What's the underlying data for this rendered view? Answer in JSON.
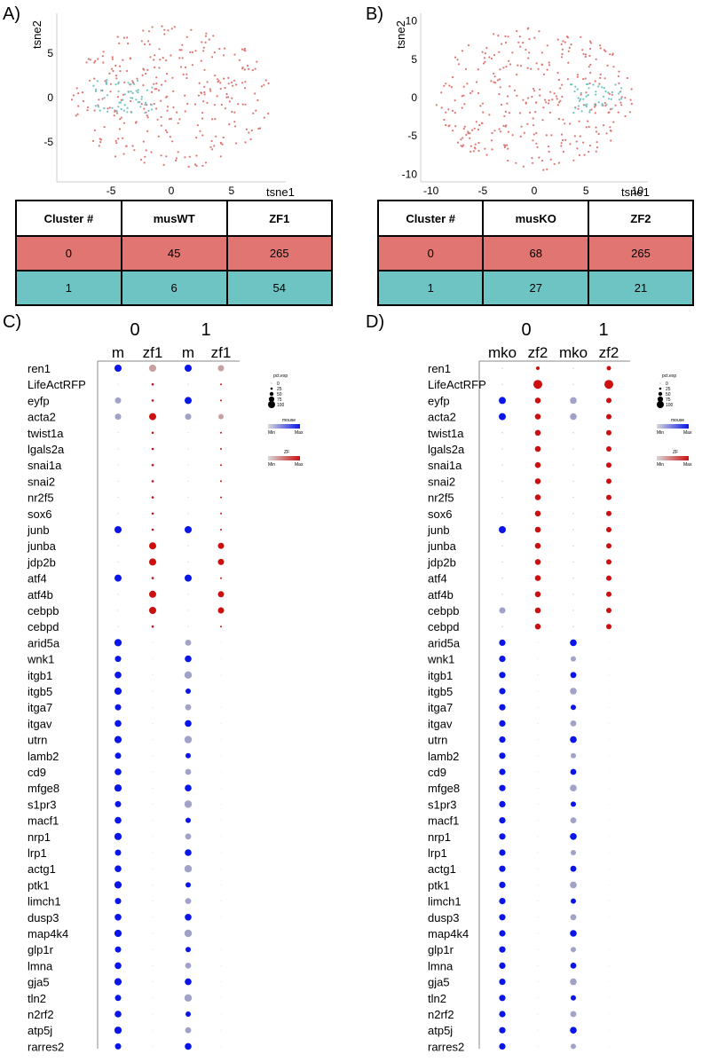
{
  "colors": {
    "cluster0": "#e07571",
    "cluster1": "#6ec3c3",
    "mouse_dot": "#0a16e8",
    "zf_dot": "#cc1010",
    "mouse_pale": "#a0a2c8",
    "zf_pale": "#c8a0a0"
  },
  "labels": {
    "A": "A)",
    "B": "B)",
    "C": "C)",
    "D": "D)"
  },
  "chart_data": [
    {
      "panel": "A",
      "type": "scatter",
      "xlabel": "tsne1",
      "ylabel": "tsne2",
      "xlim": [
        -9.5,
        9.5
      ],
      "ylim": [
        -9.5,
        9.5
      ],
      "xticks": [
        -5,
        0,
        5
      ],
      "yticks": [
        -5,
        0,
        5
      ],
      "series": [
        {
          "name": "0",
          "color": "#e07571",
          "count": 310
        },
        {
          "name": "1",
          "color": "#6ec3c3",
          "count": 60
        }
      ],
      "table": {
        "headers": [
          "Cluster #",
          "musWT",
          "ZF1"
        ],
        "rows": [
          {
            "cells": [
              "0",
              "45",
              "265"
            ]
          },
          {
            "cells": [
              "1",
              "6",
              "54"
            ]
          }
        ]
      }
    },
    {
      "panel": "B",
      "type": "scatter",
      "xlabel": "tsne1",
      "ylabel": "tsne2",
      "xlim": [
        -11,
        11
      ],
      "ylim": [
        -11,
        11
      ],
      "xticks": [
        -10,
        -5,
        0,
        5,
        10
      ],
      "yticks": [
        -10,
        -5,
        0,
        5,
        10
      ],
      "series": [
        {
          "name": "0",
          "color": "#e07571",
          "count": 333
        },
        {
          "name": "1",
          "color": "#6ec3c3",
          "count": 48
        }
      ],
      "table": {
        "headers": [
          "Cluster #",
          "musKO",
          "ZF2"
        ],
        "rows": [
          {
            "cells": [
              "0",
              "68",
              "265"
            ]
          },
          {
            "cells": [
              "1",
              "27",
              "21"
            ]
          }
        ]
      }
    },
    {
      "panel": "C",
      "type": "dotplot",
      "clusters": [
        "0",
        "1"
      ],
      "columns": [
        "m",
        "zf1",
        "m",
        "zf1"
      ],
      "genes": [
        "ren1",
        "LifeActRFP",
        "eyfp",
        "acta2",
        "twist1a",
        "lgals2a",
        "snai1a",
        "snai2",
        "nr2f5",
        "sox6",
        "junb",
        "junba",
        "jdp2b",
        "atf4",
        "atf4b",
        "cebpb",
        "cebpd",
        "arid5a",
        "wnk1",
        "itgb1",
        "itgb5",
        "itga7",
        "itgav",
        "utrn",
        "lamb2",
        "cd9",
        "mfge8",
        "s1pr3",
        "macf1",
        "nrp1",
        "lrp1",
        "actg1",
        "ptk1",
        "limch1",
        "dusp3",
        "map4k4",
        "glp1r",
        "lmna",
        "gja5",
        "tln2",
        "n2rf2",
        "atp5j",
        "rarres2"
      ],
      "legend": {
        "size_title": "pct.exp",
        "size_values": [
          "0",
          "25",
          "50",
          "75",
          "100"
        ],
        "mouse_title": "mouse",
        "zf_title": "ZF",
        "min": "Min",
        "max": "Max"
      }
    },
    {
      "panel": "D",
      "type": "dotplot",
      "clusters": [
        "0",
        "1"
      ],
      "columns": [
        "mko",
        "zf2",
        "mko",
        "zf2"
      ],
      "genes": [
        "ren1",
        "LifeActRFP",
        "eyfp",
        "acta2",
        "twist1a",
        "lgals2a",
        "snai1a",
        "snai2",
        "nr2f5",
        "sox6",
        "junb",
        "junba",
        "jdp2b",
        "atf4",
        "atf4b",
        "cebpb",
        "cebpd",
        "arid5a",
        "wnk1",
        "itgb1",
        "itgb5",
        "itga7",
        "itgav",
        "utrn",
        "lamb2",
        "cd9",
        "mfge8",
        "s1pr3",
        "macf1",
        "nrp1",
        "lrp1",
        "actg1",
        "ptk1",
        "limch1",
        "dusp3",
        "map4k4",
        "glp1r",
        "lmna",
        "gja5",
        "tln2",
        "n2rf2",
        "atp5j",
        "rarres2"
      ],
      "legend": {
        "size_title": "pct.exp",
        "size_values": [
          "0",
          "25",
          "50",
          "75",
          "100"
        ],
        "mouse_title": "mouse",
        "zf_title": "ZF",
        "min": "Min",
        "max": "Max"
      }
    }
  ]
}
